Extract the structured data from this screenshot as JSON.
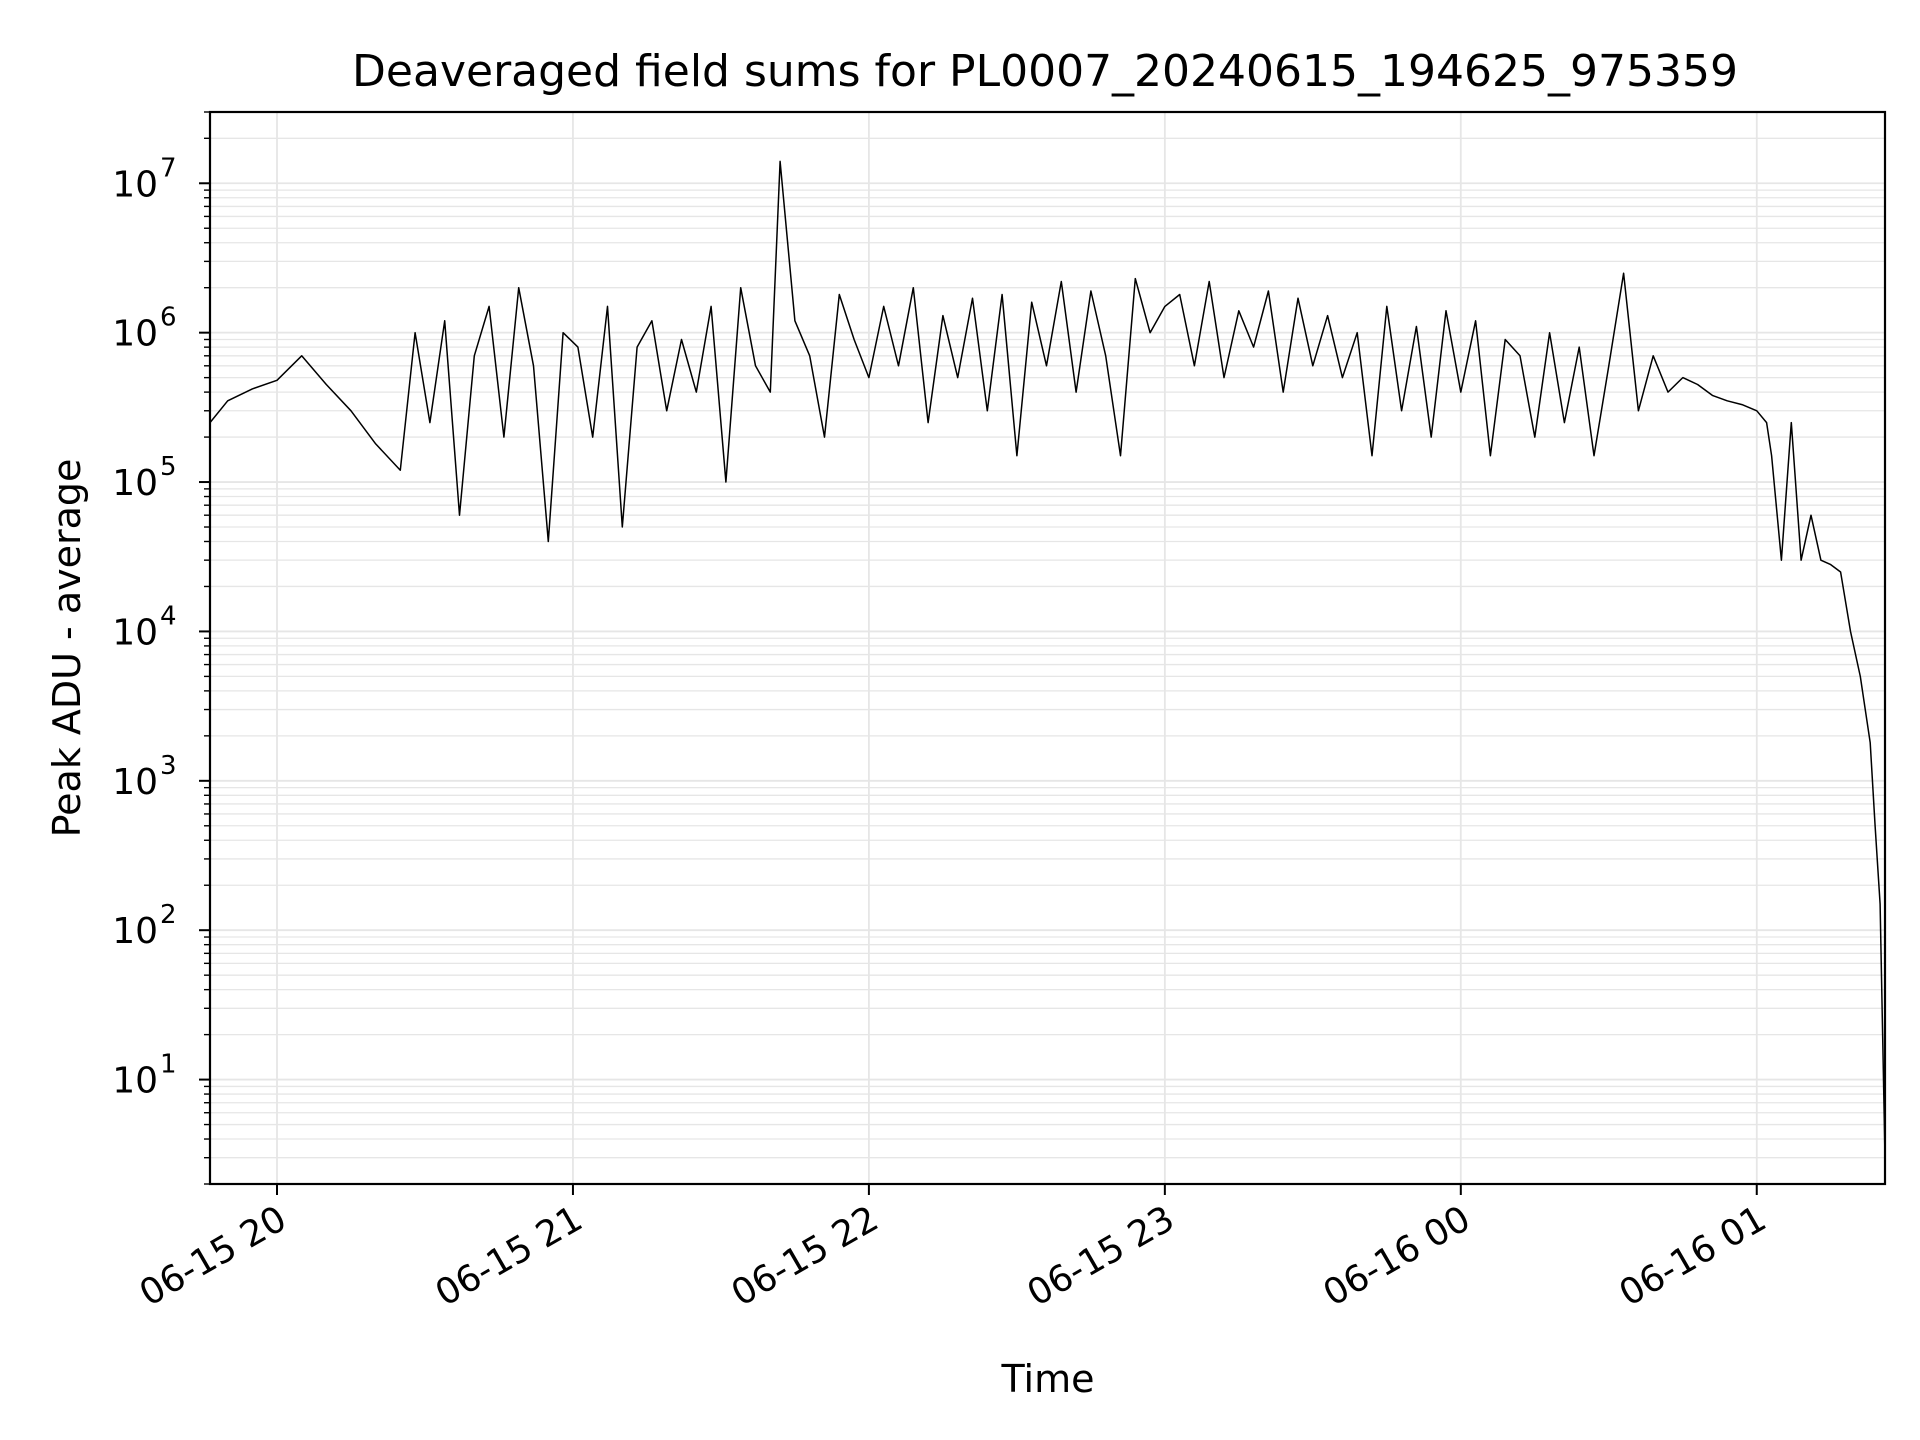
{
  "chart_data": {
    "type": "line",
    "title": "Deaveraged field sums for PL0007_20240615_194625_975359",
    "xlabel": "Time",
    "ylabel": "Peak ADU - average",
    "yscale": "log",
    "xlim": [
      "2024-06-15T19:46:25",
      "2024-06-16T01:26:00"
    ],
    "ylim": [
      2,
      30000000
    ],
    "grid": true,
    "grid_minor": true,
    "line_color": "#000000",
    "grid_color": "#e6e6e6",
    "x_ticks": [
      "2024-06-15T20:00",
      "2024-06-15T21:00",
      "2024-06-15T22:00",
      "2024-06-15T23:00",
      "2024-06-16T00:00",
      "2024-06-16T01:00"
    ],
    "x_tick_labels": [
      "06-15 20",
      "06-15 21",
      "06-15 22",
      "06-15 23",
      "06-16 00",
      "06-16 01"
    ],
    "y_ticks": [
      10,
      100,
      1000,
      10000,
      100000,
      1000000,
      10000000
    ],
    "y_tick_labels": [
      {
        "base": "10",
        "exp": "1"
      },
      {
        "base": "10",
        "exp": "2"
      },
      {
        "base": "10",
        "exp": "3"
      },
      {
        "base": "10",
        "exp": "4"
      },
      {
        "base": "10",
        "exp": "5"
      },
      {
        "base": "10",
        "exp": "6"
      },
      {
        "base": "10",
        "exp": "7"
      }
    ],
    "series": [
      {
        "x": [
          "2024-06-15T19:46:25",
          "2024-06-15T19:50:00",
          "2024-06-15T19:55:00",
          "2024-06-15T20:00:00",
          "2024-06-15T20:05:00",
          "2024-06-15T20:10:00",
          "2024-06-15T20:15:00",
          "2024-06-15T20:20:00",
          "2024-06-15T20:25:00",
          "2024-06-15T20:28:00",
          "2024-06-15T20:31:00",
          "2024-06-15T20:34:00",
          "2024-06-15T20:37:00",
          "2024-06-15T20:40:00",
          "2024-06-15T20:43:00",
          "2024-06-15T20:46:00",
          "2024-06-15T20:49:00",
          "2024-06-15T20:52:00",
          "2024-06-15T20:55:00",
          "2024-06-15T20:58:00",
          "2024-06-15T21:01:00",
          "2024-06-15T21:04:00",
          "2024-06-15T21:07:00",
          "2024-06-15T21:10:00",
          "2024-06-15T21:13:00",
          "2024-06-15T21:16:00",
          "2024-06-15T21:19:00",
          "2024-06-15T21:22:00",
          "2024-06-15T21:25:00",
          "2024-06-15T21:28:00",
          "2024-06-15T21:31:00",
          "2024-06-15T21:34:00",
          "2024-06-15T21:37:00",
          "2024-06-15T21:40:00",
          "2024-06-15T21:42:00",
          "2024-06-15T21:45:00",
          "2024-06-15T21:48:00",
          "2024-06-15T21:51:00",
          "2024-06-15T21:54:00",
          "2024-06-15T21:57:00",
          "2024-06-15T22:00:00",
          "2024-06-15T22:03:00",
          "2024-06-15T22:06:00",
          "2024-06-15T22:09:00",
          "2024-06-15T22:12:00",
          "2024-06-15T22:15:00",
          "2024-06-15T22:18:00",
          "2024-06-15T22:21:00",
          "2024-06-15T22:24:00",
          "2024-06-15T22:27:00",
          "2024-06-15T22:30:00",
          "2024-06-15T22:33:00",
          "2024-06-15T22:36:00",
          "2024-06-15T22:39:00",
          "2024-06-15T22:42:00",
          "2024-06-15T22:45:00",
          "2024-06-15T22:48:00",
          "2024-06-15T22:51:00",
          "2024-06-15T22:54:00",
          "2024-06-15T22:57:00",
          "2024-06-15T23:00:00",
          "2024-06-15T23:03:00",
          "2024-06-15T23:06:00",
          "2024-06-15T23:09:00",
          "2024-06-15T23:12:00",
          "2024-06-15T23:15:00",
          "2024-06-15T23:18:00",
          "2024-06-15T23:21:00",
          "2024-06-15T23:24:00",
          "2024-06-15T23:27:00",
          "2024-06-15T23:30:00",
          "2024-06-15T23:33:00",
          "2024-06-15T23:36:00",
          "2024-06-15T23:39:00",
          "2024-06-15T23:42:00",
          "2024-06-15T23:45:00",
          "2024-06-15T23:48:00",
          "2024-06-15T23:51:00",
          "2024-06-15T23:54:00",
          "2024-06-15T23:57:00",
          "2024-06-16T00:00:00",
          "2024-06-16T00:03:00",
          "2024-06-16T00:06:00",
          "2024-06-16T00:09:00",
          "2024-06-16T00:12:00",
          "2024-06-16T00:15:00",
          "2024-06-16T00:18:00",
          "2024-06-16T00:21:00",
          "2024-06-16T00:24:00",
          "2024-06-16T00:27:00",
          "2024-06-16T00:30:00",
          "2024-06-16T00:33:00",
          "2024-06-16T00:36:00",
          "2024-06-16T00:39:00",
          "2024-06-16T00:42:00",
          "2024-06-16T00:45:00",
          "2024-06-16T00:48:00",
          "2024-06-16T00:51:00",
          "2024-06-16T00:54:00",
          "2024-06-16T00:57:00",
          "2024-06-16T01:00:00",
          "2024-06-16T01:02:00",
          "2024-06-16T01:03:00",
          "2024-06-16T01:05:00",
          "2024-06-16T01:07:00",
          "2024-06-16T01:09:00",
          "2024-06-16T01:11:00",
          "2024-06-16T01:13:00",
          "2024-06-16T01:15:00",
          "2024-06-16T01:17:00",
          "2024-06-16T01:19:00",
          "2024-06-16T01:21:00",
          "2024-06-16T01:23:00",
          "2024-06-16T01:24:00",
          "2024-06-16T01:25:00",
          "2024-06-16T01:26:00"
        ],
        "y": [
          250000,
          350000,
          420000,
          480000,
          700000,
          450000,
          300000,
          180000,
          120000,
          1000000,
          250000,
          1200000,
          60000,
          700000,
          1500000,
          200000,
          2000000,
          600000,
          40000,
          1000000,
          800000,
          200000,
          1500000,
          50000,
          800000,
          1200000,
          300000,
          900000,
          400000,
          1500000,
          100000,
          2000000,
          600000,
          400000,
          14000000,
          1200000,
          700000,
          200000,
          1800000,
          900000,
          500000,
          1500000,
          600000,
          2000000,
          250000,
          1300000,
          500000,
          1700000,
          300000,
          1800000,
          150000,
          1600000,
          600000,
          2200000,
          400000,
          1900000,
          700000,
          150000,
          2300000,
          1000000,
          1500000,
          1800000,
          600000,
          2200000,
          500000,
          1400000,
          800000,
          1900000,
          400000,
          1700000,
          600000,
          1300000,
          500000,
          1000000,
          150000,
          1500000,
          300000,
          1100000,
          200000,
          1400000,
          400000,
          1200000,
          150000,
          900000,
          700000,
          200000,
          1000000,
          250000,
          800000,
          150000,
          600000,
          2500000,
          300000,
          700000,
          400000,
          500000,
          450000,
          380000,
          350000,
          330000,
          300000,
          250000,
          150000,
          30000,
          250000,
          30000,
          60000,
          30000,
          28000,
          25000,
          10000,
          5000,
          1800,
          500,
          150,
          3
        ]
      }
    ]
  }
}
